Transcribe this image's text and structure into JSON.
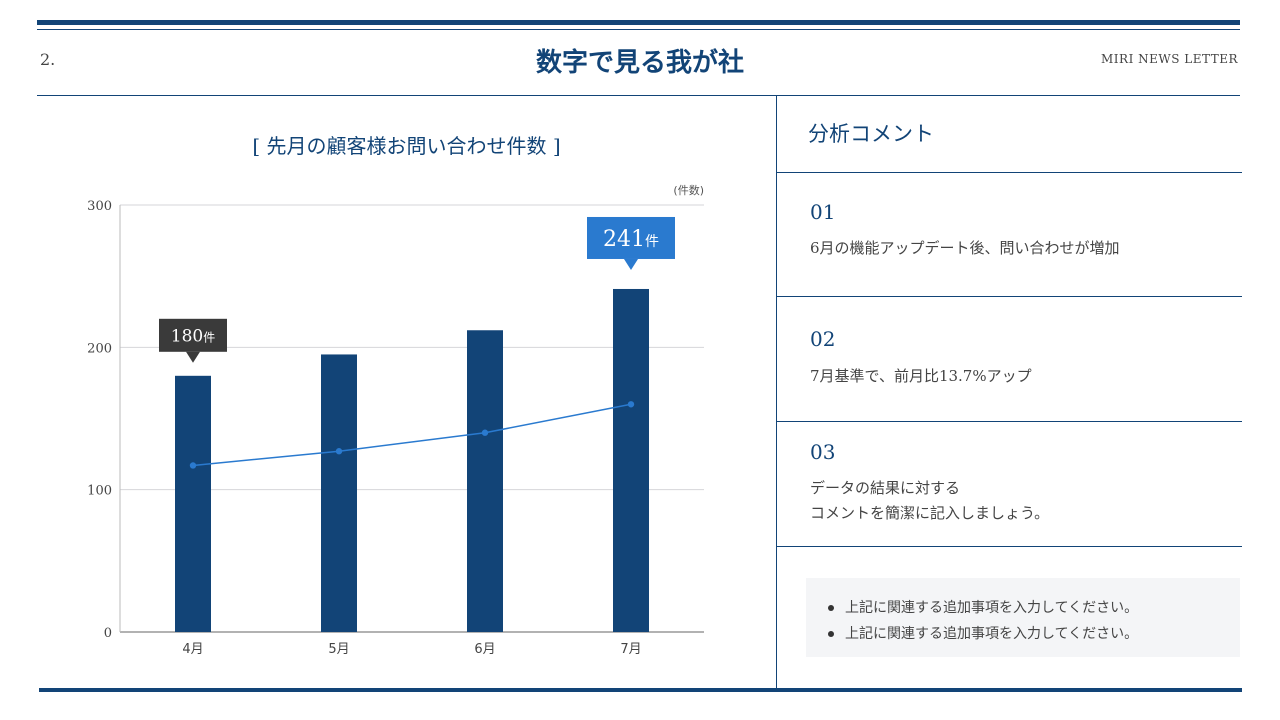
{
  "header": {
    "page_number": "2.",
    "title": "数字で見る我が社",
    "brand": "MIRI NEWS LETTER"
  },
  "chart_data": {
    "type": "bar",
    "title": "[ 先月の顧客様お問い合わせ件数 ]",
    "unit_label": "(件数)",
    "categories": [
      "4月",
      "5月",
      "6月",
      "7月"
    ],
    "series": [
      {
        "type": "bar",
        "values": [
          180,
          195,
          212,
          241
        ],
        "color": "#124477"
      },
      {
        "type": "line",
        "values": [
          117,
          127,
          140,
          160
        ],
        "color": "#2a7acf"
      }
    ],
    "ylim": [
      0,
      300
    ],
    "yticks": [
      "0",
      "100",
      "200",
      "300"
    ],
    "grid": true,
    "callouts": [
      {
        "category": "4月",
        "value": "180",
        "suffix": "件",
        "color": "#3a3a3a"
      },
      {
        "category": "7月",
        "value": "241",
        "suffix": "件",
        "color": "#2a7acf"
      }
    ]
  },
  "analysis": {
    "heading": "分析コメント",
    "items": [
      {
        "no": "01",
        "lines": [
          "6月の機能アップデート後、問い合わせが増加"
        ]
      },
      {
        "no": "02",
        "lines": [
          "7月基準で、前月比13.7%アップ"
        ]
      },
      {
        "no": "03",
        "lines": [
          "データの結果に対する",
          "コメントを簡潔に記入しましょう。"
        ]
      }
    ],
    "notes": [
      "上記に関連する追加事項を入力してください。",
      "上記に関連する追加事項を入力してください。"
    ]
  }
}
